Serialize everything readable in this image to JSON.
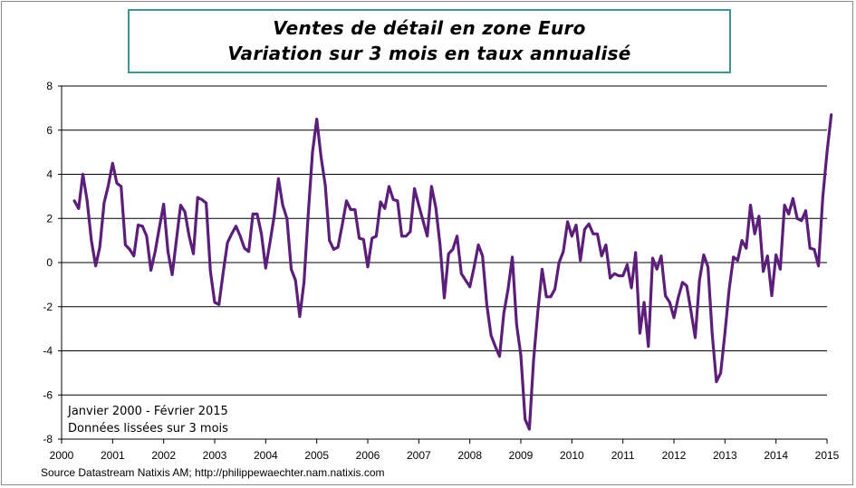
{
  "chart_data": {
    "type": "line",
    "title": [
      "Ventes de détail en zone Euro",
      "Variation sur 3 mois en taux annualisé"
    ],
    "xlabel": "",
    "ylabel": "",
    "ylim": [
      -8,
      8
    ],
    "yticks": [
      8,
      6,
      4,
      2,
      0,
      -2,
      -4,
      -6,
      -8
    ],
    "ytick_labels": [
      "8",
      "6",
      "4",
      "2",
      "0",
      "-2",
      "-4",
      "-6",
      "-8"
    ],
    "xlim": [
      2000,
      2015
    ],
    "xticks": [
      2000,
      2001,
      2002,
      2003,
      2004,
      2005,
      2006,
      2007,
      2008,
      2009,
      2010,
      2011,
      2012,
      2013,
      2014,
      2015
    ],
    "xtick_labels": [
      "2000",
      "2001",
      "2002",
      "2003",
      "2004",
      "2005",
      "2006",
      "2007",
      "2008",
      "2009",
      "2010",
      "2011",
      "2012",
      "2013",
      "2014",
      "2015"
    ],
    "grid": "horizontal",
    "series": [
      {
        "name": "Ventes de détail zone Euro (var. 3 mois annualisée)",
        "color": "#5b1f7a",
        "start_year": 2000.25,
        "step_years": 0.0833333,
        "values": [
          2.8,
          2.45,
          4.0,
          2.8,
          1.0,
          -0.15,
          0.7,
          2.7,
          3.5,
          4.5,
          3.6,
          3.45,
          0.8,
          0.6,
          0.3,
          1.7,
          1.65,
          1.2,
          -0.35,
          0.5,
          1.6,
          2.65,
          0.5,
          -0.55,
          1.0,
          2.6,
          2.3,
          1.2,
          0.4,
          2.95,
          2.85,
          2.7,
          -0.4,
          -1.8,
          -1.9,
          -0.45,
          0.9,
          1.3,
          1.65,
          1.2,
          0.65,
          0.5,
          2.2,
          2.2,
          1.3,
          -0.25,
          0.9,
          2.1,
          3.8,
          2.6,
          2.0,
          -0.3,
          -0.8,
          -2.45,
          -0.9,
          2.2,
          5.0,
          6.5,
          4.8,
          3.5,
          1.0,
          0.6,
          0.7,
          1.7,
          2.8,
          2.4,
          2.4,
          1.1,
          1.05,
          -0.2,
          1.1,
          1.2,
          2.75,
          2.45,
          3.45,
          2.85,
          2.8,
          1.2,
          1.2,
          1.4,
          3.35,
          2.6,
          1.9,
          1.2,
          3.45,
          2.5,
          0.8,
          -1.6,
          0.4,
          0.6,
          1.2,
          -0.5,
          -0.8,
          -1.1,
          -0.2,
          0.8,
          0.3,
          -1.9,
          -3.3,
          -3.8,
          -4.25,
          -2.3,
          -1.2,
          0.25,
          -2.8,
          -4.2,
          -7.1,
          -7.55,
          -4.4,
          -2.2,
          -0.3,
          -1.55,
          -1.55,
          -1.2,
          0.0,
          0.5,
          1.85,
          1.2,
          1.7,
          0.1,
          1.5,
          1.75,
          1.3,
          1.3,
          0.3,
          0.8,
          -0.7,
          -0.5,
          -0.6,
          -0.6,
          -0.1,
          -1.15,
          0.45,
          -3.2,
          -1.8,
          -3.8,
          0.2,
          -0.3,
          0.3,
          -1.5,
          -1.8,
          -2.5,
          -1.6,
          -0.9,
          -1.05,
          -2.2,
          -3.4,
          -0.8,
          0.35,
          -0.2,
          -3.2,
          -5.4,
          -5.0,
          -3.2,
          -1.2,
          0.25,
          0.1,
          1.0,
          0.65,
          2.6,
          1.3,
          2.1,
          -0.4,
          0.3,
          -1.5,
          0.35,
          -0.3,
          2.6,
          2.2,
          2.9,
          2.0,
          1.9,
          2.35,
          0.65,
          0.6,
          -0.15,
          2.95,
          5.0,
          6.7
        ]
      }
    ],
    "annotations": [
      "Janvier 2000 - Février 2015",
      "Données lissées sur 3 mois"
    ]
  },
  "source": "Source Datastream Natixis AM; http://philippewaechter.nam.natixis.com"
}
